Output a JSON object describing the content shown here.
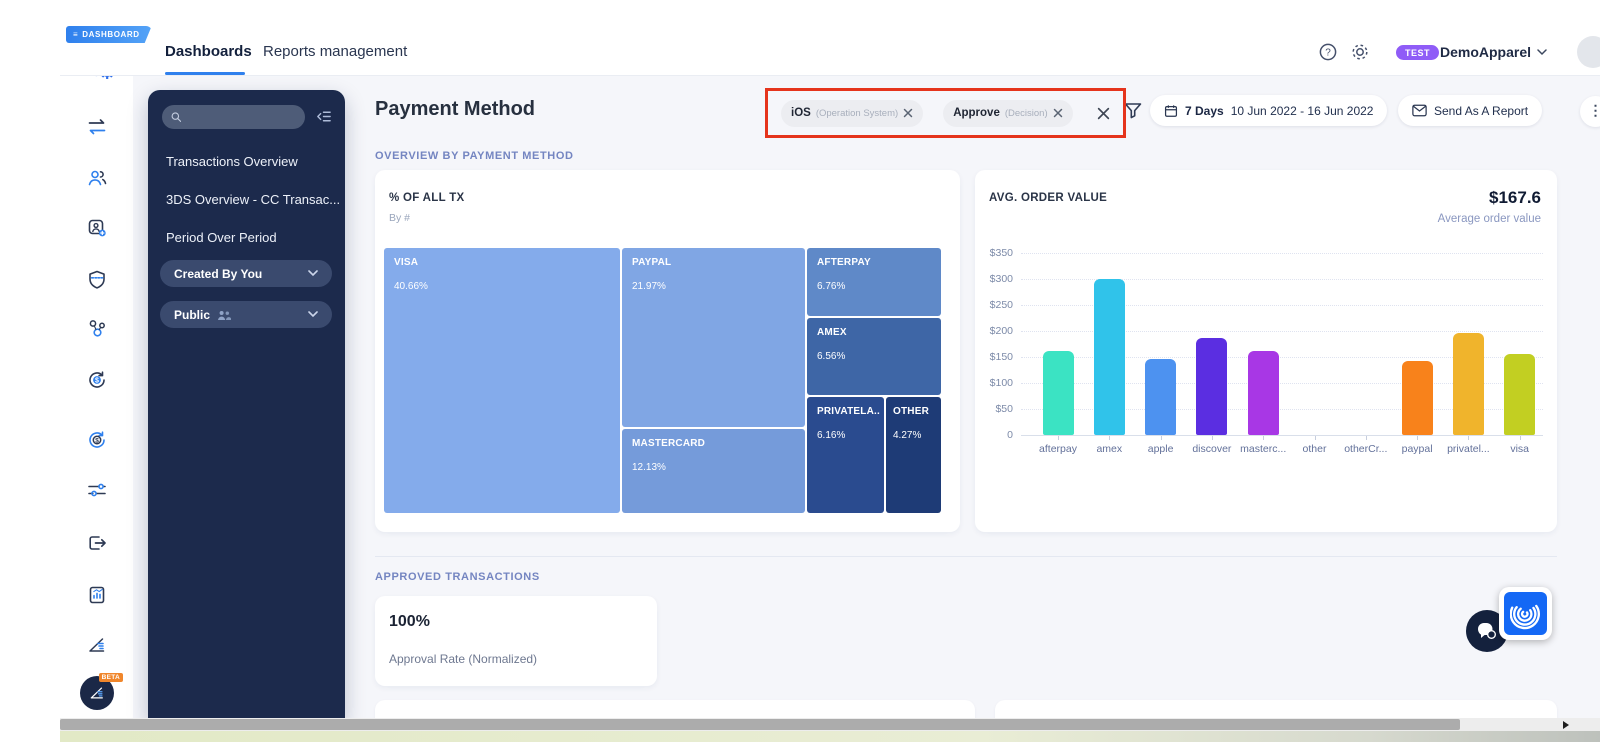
{
  "window": {
    "ribbon_label": "DASHBOARD"
  },
  "topbar": {
    "tabs": [
      {
        "label": "Dashboards",
        "active": true
      },
      {
        "label": "Reports management",
        "active": false
      }
    ],
    "help_icon": "help-icon",
    "settings_icon": "gear-icon",
    "test_badge": "TEST",
    "account_name": "DemoApparel"
  },
  "sidebar": {
    "icons": [
      "app-logo-fingerprint",
      "transfers-icon",
      "customers-icon",
      "policy-user-icon",
      "payments-shield-icon",
      "network-icon",
      "refunds-icon",
      "chargebacks-icon",
      "sliders-icon",
      "export-icon",
      "reports-icon",
      "analytics-funnel-icon",
      "beta-analytics-icon"
    ]
  },
  "nav_panel": {
    "search_placeholder": "",
    "collapse_icon": "collapse-panel-icon",
    "items": [
      "Transactions Overview",
      "3DS Overview - CC Transac...",
      "Period Over Period"
    ],
    "created_by": "Created By You",
    "public": "Public"
  },
  "page": {
    "title": "Payment Method",
    "section_overview": "OVERVIEW BY PAYMENT METHOD",
    "section_approved": "APPROVED TRANSACTIONS"
  },
  "filters": {
    "chips": [
      {
        "value": "iOS",
        "dimension": "(Operation System)"
      },
      {
        "value": "Approve",
        "dimension": "(Decision)"
      }
    ],
    "annotation_color": "#E5341C"
  },
  "toolbar": {
    "filter_icon": "funnel-icon",
    "calendar_icon": "calendar-icon",
    "date_preset": "7 Days",
    "date_range": "10 Jun 2022 - 16 Jun 2022",
    "send_icon": "envelope-icon",
    "send_report_label": "Send As A Report",
    "more_icon": "kebab-menu-icon"
  },
  "approval_card": {
    "value": "100%",
    "label": "Approval Rate (Normalized)"
  },
  "beta_badge": "BETA",
  "colors": {
    "accent": "#2F80ED",
    "test_badge": "#8F5CF7",
    "panel": "#1C2A4C"
  },
  "chart_data": [
    {
      "type": "treemap",
      "title": "% OF ALL TX",
      "subtitle": "By #",
      "items": [
        {
          "name": "VISA",
          "value": 40.66,
          "label": "40.66%",
          "color": "#84ABEB"
        },
        {
          "name": "PAYPAL",
          "value": 21.97,
          "label": "21.97%",
          "color": "#80A6E4"
        },
        {
          "name": "MASTERCARD",
          "value": 12.13,
          "label": "12.13%",
          "color": "#759BDA"
        },
        {
          "name": "AFTERPAY",
          "value": 6.76,
          "label": "6.76%",
          "color": "#5F89C8"
        },
        {
          "name": "AMEX",
          "value": 6.56,
          "label": "6.56%",
          "color": "#3E66A6"
        },
        {
          "name": "PRIVATELA..",
          "value": 6.16,
          "label": "6.16%",
          "color": "#2A4B8F"
        },
        {
          "name": "OTHER",
          "value": 4.27,
          "label": "4.27%",
          "color": "#1E3B76"
        }
      ]
    },
    {
      "type": "bar",
      "title": "AVG. ORDER VALUE",
      "kpi": "$167.6",
      "kpi_label": "Average order value",
      "categories": [
        "afterpay",
        "amex",
        "apple",
        "discover",
        "masterc...",
        "other",
        "otherCr...",
        "paypal",
        "privatel...",
        "visa"
      ],
      "values": [
        162,
        300,
        147,
        186,
        161,
        0,
        0,
        143,
        197,
        155
      ],
      "colors": [
        "#3BE3C3",
        "#30C3EA",
        "#4D92F0",
        "#5B2EE1",
        "#A837E5",
        "#999999",
        "#999999",
        "#F8821B",
        "#F0B42C",
        "#C2CF22"
      ],
      "y_ticks": [
        "$350",
        "$300",
        "$250",
        "$200",
        "$150",
        "$100",
        "$50",
        "0"
      ],
      "ylim": [
        0,
        350
      ],
      "grid": "dotted-horizontal",
      "legend": "none"
    }
  ]
}
